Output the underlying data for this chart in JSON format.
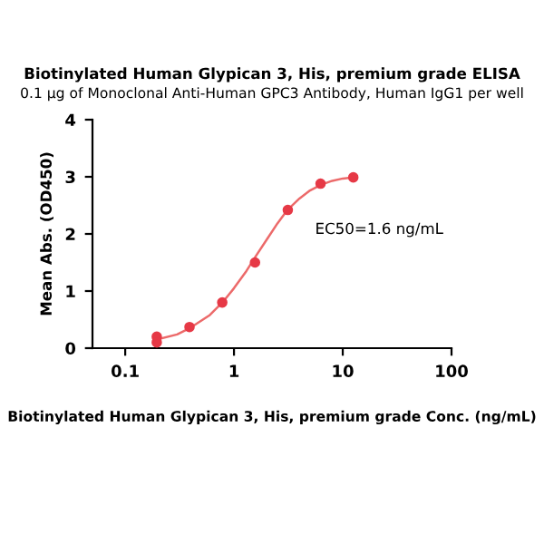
{
  "chart_data": {
    "type": "scatter",
    "title": "Biotinylated Human Glypican 3, His, premium grade ELISA",
    "subtitle": "0.1 µg of Monoclonal Anti-Human GPC3 Antibody, Human IgG1 per well",
    "xlabel": "Biotinylated Human Glypican 3, His, premium grade Conc. (ng/mL)",
    "ylabel": "Mean Abs. (OD450)",
    "annotations": [
      "EC50=1.6 ng/mL"
    ],
    "log": "x",
    "xlim": [
      0.05,
      100
    ],
    "xticks": [
      0.1,
      1,
      10,
      100
    ],
    "ylim": [
      0,
      4
    ],
    "yticks": [
      0,
      1,
      2,
      3,
      4
    ],
    "grid": false,
    "legend": false,
    "marker": "circle",
    "series": [
      {
        "color": "#e63946",
        "x": [
          0.195,
          0.195,
          0.39,
          0.78,
          1.56,
          3.125,
          6.25,
          12.5
        ],
        "values": [
          0.2,
          0.1,
          0.37,
          0.8,
          1.5,
          2.42,
          2.88,
          2.99
        ]
      },
      {
        "type": "line",
        "color": "#ec6a6a",
        "line_style": "solid",
        "marker": "none",
        "x": [
          0.195,
          0.3,
          0.4,
          0.6,
          0.8,
          1,
          1.3,
          1.6,
          2,
          2.5,
          3.1,
          4,
          5,
          6.3,
          8,
          10,
          12.5
        ],
        "values": [
          0.15,
          0.24,
          0.36,
          0.58,
          0.82,
          1.05,
          1.35,
          1.62,
          1.9,
          2.18,
          2.42,
          2.62,
          2.76,
          2.86,
          2.93,
          2.97,
          2.99
        ]
      }
    ]
  }
}
